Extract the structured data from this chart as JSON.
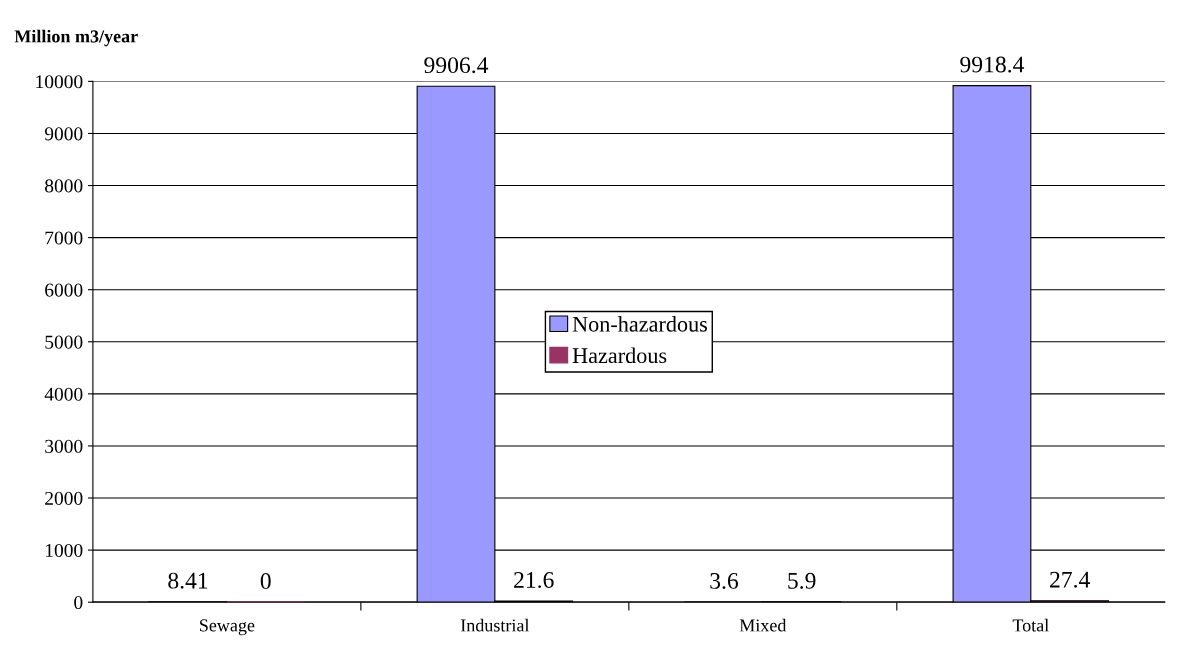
{
  "chart_data": {
    "type": "bar",
    "title": "Million m3/year",
    "categories": [
      "Sewage",
      "Industrial",
      "Mixed",
      "Total"
    ],
    "series": [
      {
        "name": "Non-hazardous",
        "color": "#9999ff",
        "values": [
          8.41,
          9906.4,
          3.6,
          9918.4
        ]
      },
      {
        "name": "Hazardous",
        "color": "#993366",
        "values": [
          0,
          21.6,
          5.9,
          27.4
        ]
      }
    ],
    "ylim": [
      0,
      10000
    ],
    "yticks": [
      0,
      1000,
      2000,
      3000,
      4000,
      5000,
      6000,
      7000,
      8000,
      9000,
      10000
    ],
    "grid": "y",
    "legend": "center",
    "data_labels": true
  }
}
